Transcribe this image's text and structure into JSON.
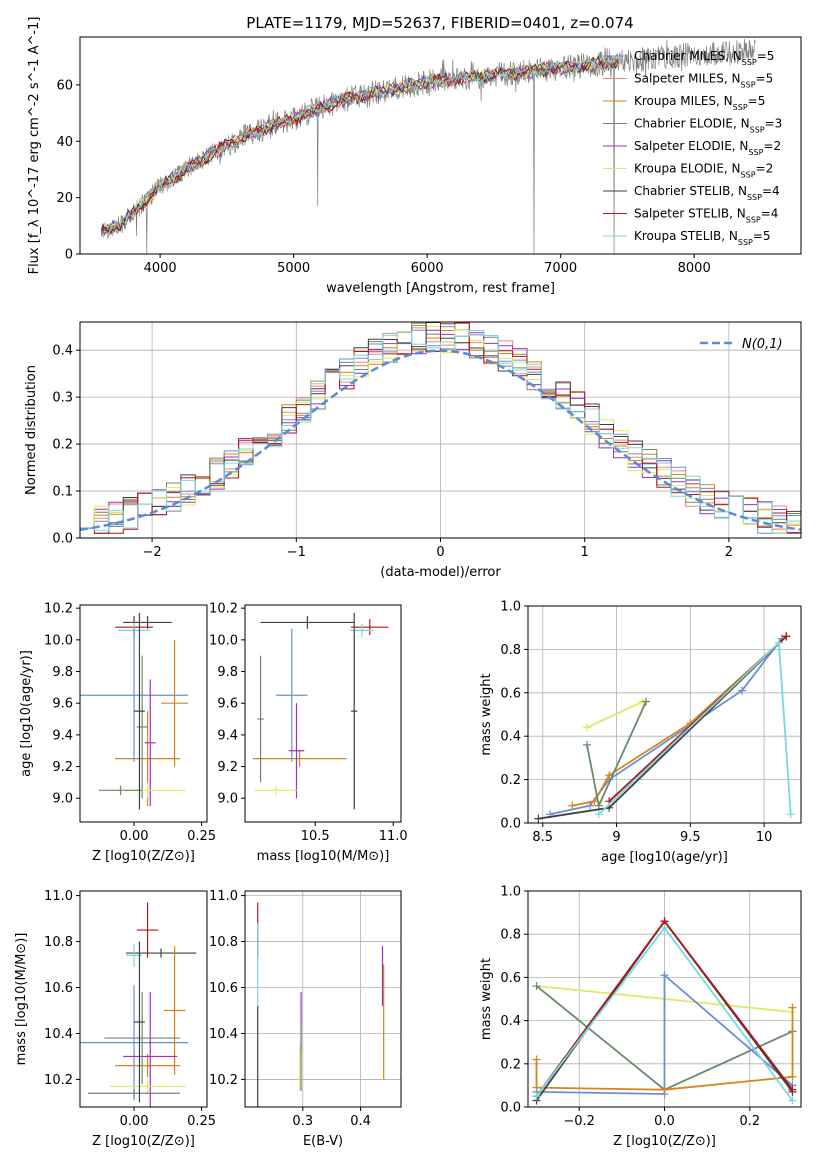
{
  "figure_title": "PLATE=1179, MJD=52637, FIBERID=0401, z=0.074",
  "models": [
    {
      "name": "Chabrier MILES",
      "nssp": 5,
      "color": "#6a8fd8"
    },
    {
      "name": "Salpeter MILES",
      "nssp": 5,
      "color": "#f08878"
    },
    {
      "name": "Kroupa MILES",
      "nssp": 5,
      "color": "#d6841c"
    },
    {
      "name": "Chabrier ELODIE",
      "nssp": 3,
      "color": "#6b8a6b"
    },
    {
      "name": "Salpeter ELODIE",
      "nssp": 2,
      "color": "#9c30c0"
    },
    {
      "name": "Kroupa ELODIE",
      "nssp": 2,
      "color": "#e3e860"
    },
    {
      "name": "Chabrier STELIB",
      "nssp": 4,
      "color": "#404040"
    },
    {
      "name": "Salpeter STELIB",
      "nssp": 4,
      "color": "#b01818"
    },
    {
      "name": "Kroupa STELIB",
      "nssp": 5,
      "color": "#78d8e0"
    }
  ],
  "chart_data": [
    {
      "id": "spectrum",
      "type": "line",
      "xlabel": "wavelength [Angstrom, rest frame]",
      "ylabel": "Flux [f_λ 10^-17 erg cm^-2 s^-1 A^-1]",
      "xlim": [
        3400,
        8800
      ],
      "ylim": [
        0,
        77
      ],
      "xticks": [
        4000,
        5000,
        6000,
        7000,
        8000
      ],
      "yticks": [
        0,
        20,
        40,
        60
      ],
      "grid": false,
      "legend_position": "right",
      "legend_labels": [
        "Chabrier MILES, N_SSP=5",
        "Salpeter MILES, N_SSP=5",
        "Kroupa MILES, N_SSP=5",
        "Chabrier ELODIE, N_SSP=3",
        "Salpeter ELODIE, N_SSP=2",
        "Kroupa ELODIE, N_SSP=2",
        "Chabrier STELIB, N_SSP=4",
        "Salpeter STELIB, N_SSP=4",
        "Kroupa STELIB, N_SSP=5"
      ],
      "continuum": [
        [
          3550,
          8
        ],
        [
          3700,
          10
        ],
        [
          3850,
          17
        ],
        [
          4000,
          24
        ],
        [
          4200,
          30
        ],
        [
          4400,
          36
        ],
        [
          4600,
          41
        ],
        [
          4800,
          45
        ],
        [
          5000,
          48
        ],
        [
          5200,
          52
        ],
        [
          5400,
          55
        ],
        [
          5600,
          57
        ],
        [
          5800,
          59
        ],
        [
          6000,
          61
        ],
        [
          6200,
          62
        ],
        [
          6400,
          63
        ],
        [
          6600,
          64
        ],
        [
          6800,
          65
        ],
        [
          7000,
          66
        ],
        [
          7200,
          67
        ],
        [
          7400,
          68
        ],
        [
          7600,
          69
        ],
        [
          7800,
          70
        ],
        [
          8000,
          71
        ],
        [
          8200,
          71
        ],
        [
          8400,
          72
        ]
      ],
      "sharp_dips": [
        [
          3900,
          0
        ],
        [
          5180,
          17
        ],
        [
          6800,
          0
        ],
        [
          7400,
          0
        ]
      ]
    },
    {
      "id": "residuals",
      "type": "step",
      "xlabel": "(data-model)/error",
      "ylabel": "Normed distribution",
      "xlim": [
        -2.5,
        2.5
      ],
      "ylim": [
        0,
        0.46
      ],
      "xticks": [
        -2,
        -1,
        0,
        1,
        2
      ],
      "xtick_labels": [
        "−2",
        "−1",
        "0",
        "1",
        "2"
      ],
      "yticks": [
        0.0,
        0.1,
        0.2,
        0.3,
        0.4
      ],
      "grid": true,
      "legend_label": "N(0,1)",
      "legend_position": "top-right",
      "reference_curve": "normal(0,1)"
    },
    {
      "id": "age-vs-Z",
      "type": "scatter",
      "xlabel": "Z [log10(Z/Z⊙)]",
      "ylabel": "age [log10(age/yr)]",
      "xlim": [
        -0.2,
        0.27
      ],
      "ylim": [
        8.85,
        10.22
      ],
      "xticks": [
        0.0,
        0.25
      ],
      "xtick_labels": [
        "0.00",
        "0.25"
      ],
      "yticks": [
        9.0,
        9.2,
        9.4,
        9.6,
        9.8,
        10.0,
        10.2
      ],
      "points": [
        {
          "x": 0.0,
          "y": 10.08,
          "xerr": 0.07,
          "yerr": 0.07,
          "color": "#b01818"
        },
        {
          "x": 0.05,
          "y": 10.11,
          "xerr": 0.09,
          "yerr": 0.04,
          "color": "#404040"
        },
        {
          "x": 0.0,
          "y": 10.06,
          "xerr": 0.06,
          "yerr": 0.05,
          "color": "#78d8e0"
        },
        {
          "x": 0.0,
          "y": 9.65,
          "xerr": 0.2,
          "yerr": 0.42,
          "color": "#6a8fd8"
        },
        {
          "x": 0.15,
          "y": 9.6,
          "xerr": 0.05,
          "yerr": 0.4,
          "color": "#d6841c"
        },
        {
          "x": 0.05,
          "y": 9.25,
          "xerr": 0.12,
          "yerr": 0.3,
          "color": "#d6841c"
        },
        {
          "x": 0.06,
          "y": 9.35,
          "xerr": 0.02,
          "yerr": 0.4,
          "color": "#9c30c0"
        },
        {
          "x": 0.03,
          "y": 9.45,
          "xerr": 0.02,
          "yerr": 0.45,
          "color": "#6b8a6b"
        },
        {
          "x": 0.05,
          "y": 9.05,
          "xerr": 0.14,
          "yerr": 0.05,
          "color": "#e3e860"
        },
        {
          "x": -0.05,
          "y": 9.05,
          "xerr": 0.08,
          "yerr": 0.03,
          "color": "#6b8a6b"
        },
        {
          "x": 0.02,
          "y": 9.55,
          "xerr": 0.02,
          "yerr": 0.62,
          "color": "#404040"
        }
      ]
    },
    {
      "id": "age-vs-mass",
      "type": "scatter",
      "xlabel": "mass [log10(M/M⊙)]",
      "ylabel": "",
      "xlim": [
        10.05,
        11.05
      ],
      "ylim": [
        8.85,
        10.22
      ],
      "xticks": [
        10.5,
        11.0
      ],
      "xtick_labels": [
        "10.5",
        "11.0"
      ],
      "yticks": [
        9.0,
        9.2,
        9.4,
        9.6,
        9.8,
        10.0,
        10.2
      ],
      "points": [
        {
          "x": 10.85,
          "y": 10.08,
          "xerr": 0.12,
          "yerr": 0.05,
          "color": "#b01818"
        },
        {
          "x": 10.45,
          "y": 10.11,
          "xerr": 0.3,
          "yerr": 0.04,
          "color": "#404040"
        },
        {
          "x": 10.8,
          "y": 10.06,
          "xerr": 0.08,
          "yerr": 0.04,
          "color": "#78d8e0"
        },
        {
          "x": 10.35,
          "y": 9.65,
          "xerr": 0.1,
          "yerr": 0.42,
          "color": "#6a8fd8"
        },
        {
          "x": 10.4,
          "y": 9.25,
          "xerr": 0.3,
          "yerr": 0.05,
          "color": "#d6841c"
        },
        {
          "x": 10.38,
          "y": 9.3,
          "xerr": 0.05,
          "yerr": 0.3,
          "color": "#9c30c0"
        },
        {
          "x": 10.15,
          "y": 9.5,
          "xerr": 0.02,
          "yerr": 0.4,
          "color": "#6b8a6b"
        },
        {
          "x": 10.25,
          "y": 9.05,
          "xerr": 0.14,
          "yerr": 0.03,
          "color": "#e3e860"
        },
        {
          "x": 10.75,
          "y": 9.55,
          "xerr": 0.02,
          "yerr": 0.62,
          "color": "#404040"
        }
      ]
    },
    {
      "id": "mass-weight-vs-age",
      "type": "line",
      "xlabel": "age [log10(age/yr)]",
      "ylabel": "mass weight",
      "xlim": [
        8.4,
        10.25
      ],
      "ylim": [
        0,
        1
      ],
      "xticks": [
        8.5,
        9.0,
        9.5,
        10.0
      ],
      "yticks": [
        0.0,
        0.2,
        0.4,
        0.6,
        0.8,
        1.0
      ],
      "grid": true,
      "series": [
        {
          "color": "#6a8fd8",
          "points": [
            [
              8.55,
              0.04
            ],
            [
              8.82,
              0.08
            ],
            [
              8.95,
              0.2
            ],
            [
              9.85,
              0.61
            ],
            [
              10.12,
              0.85
            ]
          ]
        },
        {
          "color": "#d6841c",
          "points": [
            [
              8.7,
              0.08
            ],
            [
              8.85,
              0.1
            ],
            [
              8.95,
              0.22
            ],
            [
              9.5,
              0.46
            ],
            [
              10.15,
              0.86
            ]
          ]
        },
        {
          "color": "#e3e860",
          "points": [
            [
              8.8,
              0.44
            ],
            [
              9.18,
              0.56
            ]
          ]
        },
        {
          "color": "#6b8a6b",
          "points": [
            [
              8.8,
              0.36
            ],
            [
              8.88,
              0.08
            ],
            [
              9.2,
              0.56
            ]
          ]
        },
        {
          "color": "#404040",
          "points": [
            [
              8.47,
              0.02
            ],
            [
              8.95,
              0.07
            ],
            [
              10.15,
              0.86
            ]
          ]
        },
        {
          "color": "#b01818",
          "points": [
            [
              8.95,
              0.1
            ],
            [
              10.15,
              0.86
            ]
          ]
        },
        {
          "color": "#78d8e0",
          "points": [
            [
              8.88,
              0.04
            ],
            [
              10.1,
              0.83
            ],
            [
              10.18,
              0.04
            ]
          ]
        }
      ]
    },
    {
      "id": "mass-vs-Z",
      "type": "scatter",
      "xlabel": "Z [log10(Z/Z⊙)]",
      "ylabel": "mass [log10(M/M⊙)]",
      "xlim": [
        -0.2,
        0.27
      ],
      "ylim": [
        10.08,
        11.02
      ],
      "xticks": [
        0.0,
        0.25
      ],
      "xtick_labels": [
        "0.00",
        "0.25"
      ],
      "yticks": [
        10.2,
        10.4,
        10.6,
        10.8,
        11.0
      ],
      "points": [
        {
          "x": 0.05,
          "y": 10.85,
          "xerr": 0.04,
          "yerr": 0.12,
          "color": "#b01818"
        },
        {
          "x": 0.1,
          "y": 10.75,
          "xerr": 0.13,
          "yerr": 0.02,
          "color": "#404040"
        },
        {
          "x": 0.0,
          "y": 10.74,
          "xerr": 0.03,
          "yerr": 0.05,
          "color": "#78d8e0"
        },
        {
          "x": 0.0,
          "y": 10.36,
          "xerr": 0.2,
          "yerr": 0.25,
          "color": "#6a8fd8"
        },
        {
          "x": 0.15,
          "y": 10.5,
          "xerr": 0.04,
          "yerr": 0.28,
          "color": "#d6841c"
        },
        {
          "x": 0.05,
          "y": 10.26,
          "xerr": 0.12,
          "yerr": 0.05,
          "color": "#d6841c"
        },
        {
          "x": 0.06,
          "y": 10.3,
          "xerr": 0.1,
          "yerr": 0.28,
          "color": "#9c30c0"
        },
        {
          "x": 0.03,
          "y": 10.38,
          "xerr": 0.14,
          "yerr": 0.2,
          "color": "#6b8a6b"
        },
        {
          "x": 0.05,
          "y": 10.17,
          "xerr": 0.14,
          "yerr": 0.03,
          "color": "#e3e860"
        },
        {
          "x": 0.0,
          "y": 10.14,
          "xerr": 0.17,
          "yerr": 0.02,
          "color": "#6b8a6b"
        },
        {
          "x": 0.02,
          "y": 10.45,
          "xerr": 0.02,
          "yerr": 0.35,
          "color": "#404040"
        }
      ]
    },
    {
      "id": "mass-vs-EBV",
      "type": "scatter",
      "xlabel": "E(B-V)",
      "ylabel": "",
      "xlim": [
        0.2,
        0.47
      ],
      "ylim": [
        10.08,
        11.02
      ],
      "xticks": [
        0.3,
        0.4
      ],
      "xtick_labels": [
        "0.3",
        "0.4"
      ],
      "yticks": [
        10.2,
        10.4,
        10.6,
        10.8,
        11.0
      ],
      "grid": true,
      "points": [
        {
          "x": 0.222,
          "y": 10.85,
          "yerr": 0.12,
          "color": "#b01818"
        },
        {
          "x": 0.222,
          "y": 10.7,
          "yerr": 0.18,
          "color": "#78d8e0"
        },
        {
          "x": 0.222,
          "y": 10.3,
          "yerr": 0.22,
          "color": "#404040"
        },
        {
          "x": 0.297,
          "y": 10.45,
          "yerr": 0.13,
          "color": "#9c30c0"
        },
        {
          "x": 0.297,
          "y": 10.3,
          "yerr": 0.15,
          "color": "#6b8a6b"
        },
        {
          "x": 0.295,
          "y": 10.25,
          "yerr": 0.1,
          "color": "#e3e860"
        },
        {
          "x": 0.438,
          "y": 10.65,
          "yerr": 0.13,
          "color": "#9c30c0"
        },
        {
          "x": 0.44,
          "y": 10.45,
          "yerr": 0.25,
          "color": "#d6841c"
        }
      ]
    },
    {
      "id": "mass-weight-vs-Z",
      "type": "line",
      "xlabel": "Z [log10(Z/Z⊙)]",
      "ylabel": "mass weight",
      "xlim": [
        -0.32,
        0.32
      ],
      "ylim": [
        0,
        1
      ],
      "xticks": [
        -0.2,
        0.0,
        0.2
      ],
      "xtick_labels": [
        "−0.2",
        "0.0",
        "0.2"
      ],
      "yticks": [
        0.0,
        0.2,
        0.4,
        0.6,
        0.8,
        1.0
      ],
      "grid": true,
      "series": [
        {
          "color": "#e3e860",
          "points": [
            [
              -0.3,
              0.56
            ],
            [
              0.3,
              0.44
            ]
          ]
        },
        {
          "color": "#6b8a6b",
          "points": [
            [
              -0.3,
              0.56
            ],
            [
              0.0,
              0.08
            ],
            [
              0.3,
              0.35
            ]
          ]
        },
        {
          "color": "#6a8fd8",
          "points": [
            [
              -0.3,
              0.07
            ],
            [
              0.0,
              0.06
            ],
            [
              0.0,
              0.61
            ],
            [
              0.3,
              0.1
            ]
          ]
        },
        {
          "color": "#d6841c",
          "points": [
            [
              -0.3,
              0.22
            ],
            [
              -0.3,
              0.09
            ],
            [
              0.0,
              0.08
            ],
            [
              0.3,
              0.14
            ],
            [
              0.3,
              0.46
            ]
          ]
        },
        {
          "color": "#404040",
          "points": [
            [
              -0.3,
              0.03
            ],
            [
              0.0,
              0.86
            ],
            [
              0.3,
              0.07
            ]
          ]
        },
        {
          "color": "#b01818",
          "points": [
            [
              -0.3,
              0.05
            ],
            [
              0.0,
              0.86
            ],
            [
              0.3,
              0.08
            ]
          ]
        },
        {
          "color": "#78d8e0",
          "points": [
            [
              -0.3,
              0.05
            ],
            [
              0.0,
              0.83
            ],
            [
              0.3,
              0.03
            ]
          ]
        }
      ]
    }
  ]
}
